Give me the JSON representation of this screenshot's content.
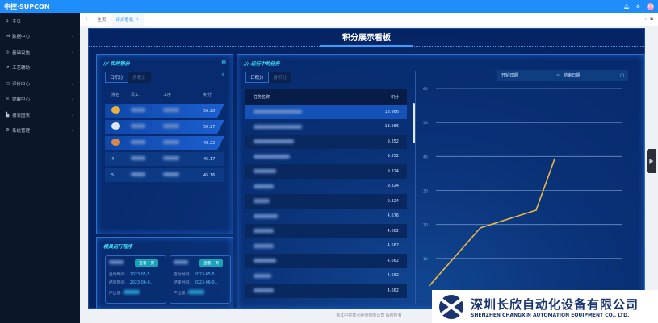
{
  "topbar": {
    "logo": "中控·SUPCON",
    "avatar": "管理"
  },
  "sidebar": {
    "items": [
      {
        "label": "主页",
        "icon": "home-icon"
      },
      {
        "label": "数据中心",
        "icon": "share-icon"
      },
      {
        "label": "基础设施",
        "icon": "settings-icon"
      },
      {
        "label": "工艺辅助",
        "icon": "rocket-icon"
      },
      {
        "label": "评价中心",
        "icon": "chat-icon"
      },
      {
        "label": "提醒中心",
        "icon": "trophy-icon"
      },
      {
        "label": "报表图表",
        "icon": "chart-icon"
      },
      {
        "label": "系统管理",
        "icon": "gear-icon"
      }
    ]
  },
  "tabs": [
    {
      "label": "主页"
    },
    {
      "label": "评价看板"
    }
  ],
  "board": {
    "title": "积分展示看板"
  },
  "realtime": {
    "title": "实时积分",
    "tabs": [
      "日积分",
      "月积分"
    ],
    "headers": [
      "排名",
      "员工",
      "工序",
      "积分"
    ],
    "rows": [
      {
        "rank": "1",
        "score": "56.28"
      },
      {
        "rank": "2",
        "score": "50.27"
      },
      {
        "rank": "3",
        "score": "48.22"
      },
      {
        "rank": "4",
        "score": "45.17"
      },
      {
        "rank": "5",
        "score": "45.16"
      }
    ]
  },
  "tasks": {
    "title": "运行中的任务",
    "tabs": [
      "日积分",
      "月积分"
    ],
    "headers": [
      "任务名称",
      "积分"
    ],
    "rows": [
      "13.986",
      "13.986",
      "9.352",
      "9.352",
      "9.324",
      "9.324",
      "9.324",
      "4.676",
      "4.662",
      "4.662",
      "4.662",
      "4.662",
      "4.662"
    ]
  },
  "molds": {
    "title": "模具运行程序",
    "cards": [
      {
        "tag": "查看一页",
        "start_label": "启动时间:",
        "start": "2023-05-5...",
        "end_label": "结束时间:",
        "end": "2023-06-0...",
        "output_label": "产出量:"
      },
      {
        "tag": "查看一页",
        "start_label": "启动时间:",
        "start": "2023-05-5...",
        "end_label": "结束时间:",
        "end": "2023-06-0...",
        "output_label": "产出量:"
      }
    ]
  },
  "datepicker": {
    "start": "开始日期",
    "sep": "~",
    "end": "结束日期"
  },
  "chart_data": {
    "type": "line",
    "ylim": [
      0,
      60
    ],
    "yticks": [
      10,
      20,
      30,
      40,
      50,
      60
    ],
    "grid": true,
    "series": [
      {
        "values": [
          2,
          19,
          24.2,
          39.3
        ],
        "color": "#e8b949"
      }
    ]
  },
  "footer": "浙江中控技术股份有限公司 版权所有",
  "watermark": {
    "cn": "深圳长欣自动化设备有限公司",
    "en": "SHENZHEN CHANGXIN AUTOMATION EQUIPMENT CO., LTD."
  }
}
